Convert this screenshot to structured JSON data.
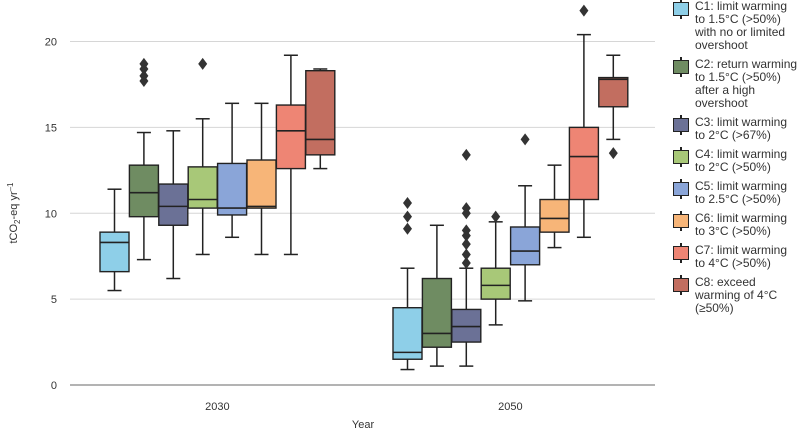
{
  "chart_data": {
    "type": "box",
    "title": "",
    "xlabel": "Year",
    "ylabel": "tCO2-eq yr⁻¹",
    "ylabel_main": "tCO",
    "ylabel_sub": "2",
    "ylabel_rest": "-eq yr",
    "ylabel_sup": "–1",
    "ylim": [
      0,
      22
    ],
    "yticks": [
      0,
      5,
      10,
      15,
      20
    ],
    "grid": true,
    "legend_position": "right",
    "groups": [
      "2030",
      "2050"
    ],
    "series": [
      {
        "name": "C1: limit warming to 1.5°C (>50%) with no or limited overshoot",
        "color": "#8ecfe8",
        "boxes": [
          {
            "min": 5.5,
            "q1": 6.6,
            "median": 8.3,
            "q3": 8.9,
            "max": 11.4,
            "outliers": []
          },
          {
            "min": 0.9,
            "q1": 1.5,
            "median": 1.9,
            "q3": 4.5,
            "max": 6.8,
            "outliers": [
              9.1,
              9.8,
              10.6
            ]
          }
        ]
      },
      {
        "name": "C2: return warming to 1.5°C (>50%) after a high overshoot",
        "color": "#6f8c62",
        "boxes": [
          {
            "min": 7.3,
            "q1": 9.8,
            "median": 11.2,
            "q3": 12.8,
            "max": 14.7,
            "outliers": [
              17.7,
              18.0,
              18.4,
              18.7
            ]
          },
          {
            "min": 1.1,
            "q1": 2.2,
            "median": 3.0,
            "q3": 6.2,
            "max": 9.3,
            "outliers": []
          }
        ]
      },
      {
        "name": "C3: limit warming to 2°C (>67%)",
        "color": "#6b7196",
        "boxes": [
          {
            "min": 6.2,
            "q1": 9.3,
            "median": 10.4,
            "q3": 11.7,
            "max": 14.8,
            "outliers": []
          },
          {
            "min": 1.1,
            "q1": 2.5,
            "median": 3.4,
            "q3": 4.4,
            "max": 6.8,
            "outliers": [
              7.1,
              7.6,
              8.2,
              8.7,
              9.0,
              10.0,
              10.3,
              13.4
            ]
          }
        ]
      },
      {
        "name": "C4: limit warming to 2°C (>50%)",
        "color": "#a8c878",
        "boxes": [
          {
            "min": 7.6,
            "q1": 10.3,
            "median": 10.8,
            "q3": 12.7,
            "max": 15.5,
            "outliers": [
              18.7
            ]
          },
          {
            "min": 3.5,
            "q1": 5.0,
            "median": 5.8,
            "q3": 6.8,
            "max": 9.5,
            "outliers": [
              9.8
            ]
          }
        ]
      },
      {
        "name": "C5: limit warming to 2.5°C (>50%)",
        "color": "#8aa5d8",
        "boxes": [
          {
            "min": 8.6,
            "q1": 9.9,
            "median": 10.3,
            "q3": 12.9,
            "max": 16.4,
            "outliers": []
          },
          {
            "min": 4.9,
            "q1": 7.0,
            "median": 7.8,
            "q3": 9.2,
            "max": 11.6,
            "outliers": [
              14.3
            ]
          }
        ]
      },
      {
        "name": "C6: limit warming to 3°C (>50%)",
        "color": "#f7b578",
        "boxes": [
          {
            "min": 7.6,
            "q1": 10.3,
            "median": 10.4,
            "q3": 13.1,
            "max": 16.4,
            "outliers": []
          },
          {
            "min": 8.0,
            "q1": 8.9,
            "median": 9.7,
            "q3": 10.8,
            "max": 12.8,
            "outliers": []
          }
        ]
      },
      {
        "name": "C7: limit warming to 4°C (>50%)",
        "color": "#ee8574",
        "boxes": [
          {
            "min": 7.6,
            "q1": 12.6,
            "median": 14.8,
            "q3": 16.3,
            "max": 19.2,
            "outliers": []
          },
          {
            "min": 8.6,
            "q1": 10.8,
            "median": 13.3,
            "q3": 15.0,
            "max": 20.4,
            "outliers": [
              21.8
            ]
          }
        ]
      },
      {
        "name": "C8: exceed warming of 4°C (≥50%)",
        "color": "#c26e60",
        "boxes": [
          {
            "min": 12.6,
            "q1": 13.4,
            "median": 14.3,
            "q3": 18.3,
            "max": 18.4,
            "outliers": []
          },
          {
            "min": 14.3,
            "q1": 16.2,
            "median": 17.8,
            "q3": 17.9,
            "max": 19.2,
            "outliers": [
              13.5
            ]
          }
        ]
      }
    ]
  }
}
